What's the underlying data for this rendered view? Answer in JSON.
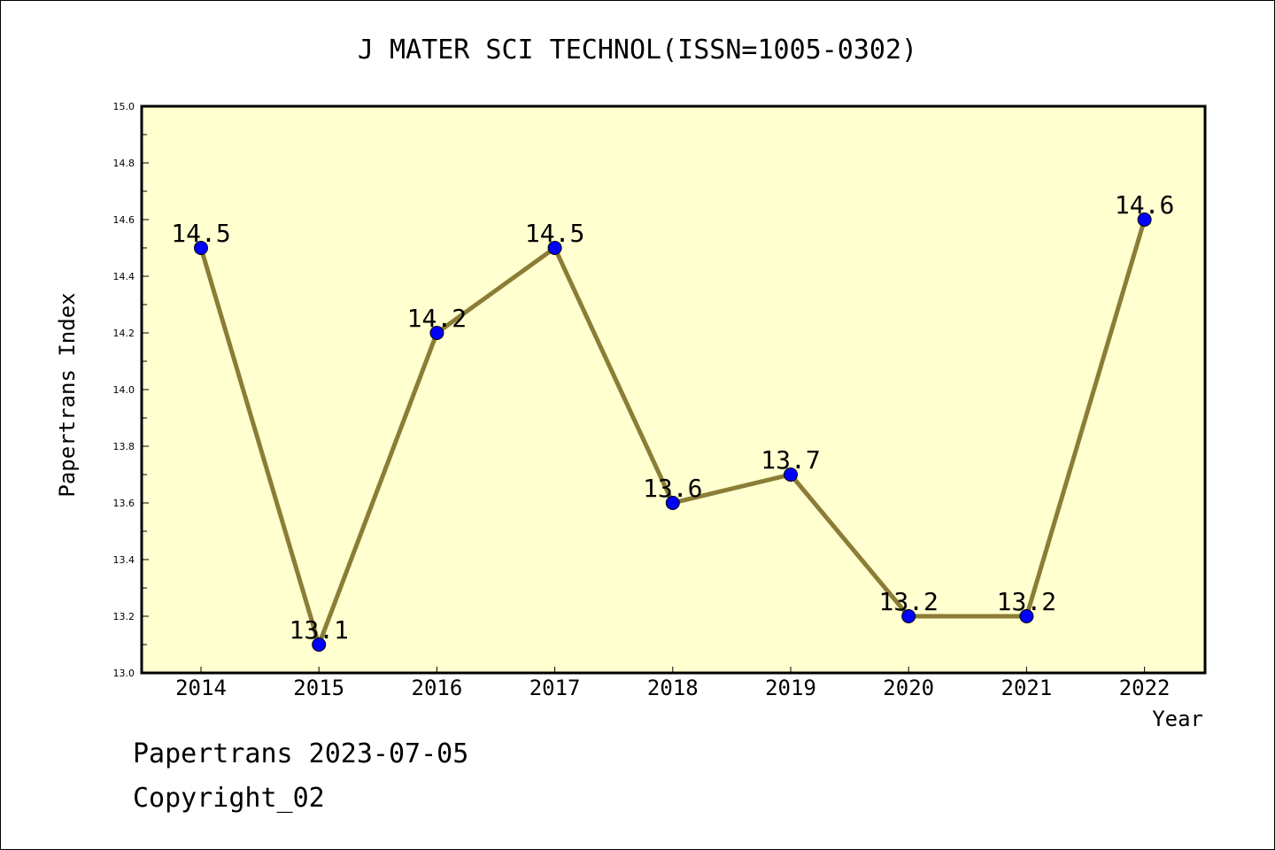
{
  "chart_data": {
    "type": "line",
    "title": "J MATER SCI TECHNOL(ISSN=1005-0302)",
    "xlabel": "Year",
    "ylabel": "Papertrans Index",
    "categories": [
      "2014",
      "2015",
      "2016",
      "2017",
      "2018",
      "2019",
      "2020",
      "2021",
      "2022"
    ],
    "values": [
      14.5,
      13.1,
      14.2,
      14.5,
      13.6,
      13.7,
      13.2,
      13.2,
      14.6
    ],
    "data_labels": [
      "14.5",
      "13.1",
      "14.2",
      "14.5",
      "13.6",
      "13.7",
      "13.2",
      "13.2",
      "14.6"
    ],
    "ylim": [
      13.0,
      15.0
    ],
    "yticks": [
      "13.0",
      "13.2",
      "13.4",
      "13.6",
      "13.8",
      "14.0",
      "14.2",
      "14.4",
      "14.6",
      "14.8",
      "15.0"
    ],
    "grid": false,
    "colors": {
      "plot_background": "#ffffd0",
      "line": "#8b7d35",
      "marker": "#0000ff"
    }
  },
  "footer": {
    "line1": "Papertrans 2023-07-05",
    "line2": "Copyright_02"
  }
}
